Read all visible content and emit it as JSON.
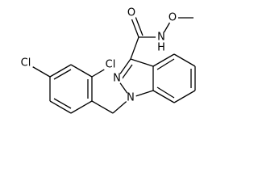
{
  "atoms": [
    {
      "label": "Cl"
    },
    {
      "label": "Cl"
    },
    {
      "label": "O"
    },
    {
      "label": "N"
    },
    {
      "label": "H"
    },
    {
      "label": "O"
    },
    {
      "label": "N"
    },
    {
      "label": "N"
    }
  ]
}
